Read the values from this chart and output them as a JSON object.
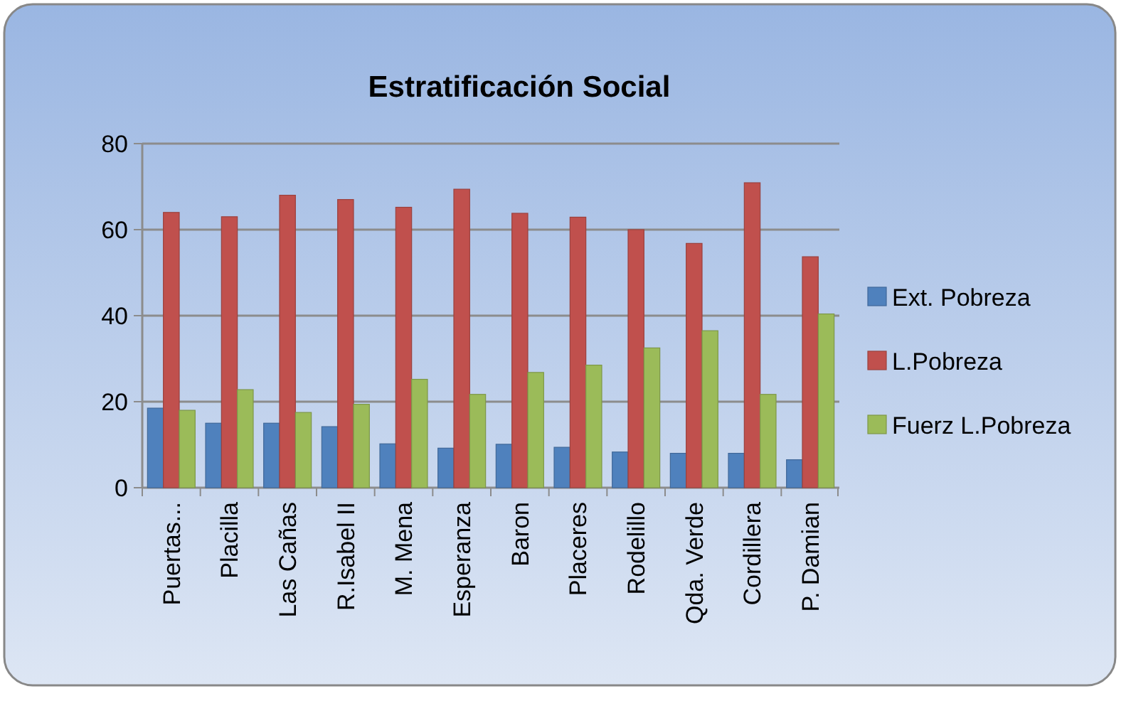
{
  "chart_data": {
    "type": "bar",
    "title": "Estratificación Social",
    "categories": [
      "Puertas...",
      "Placilla",
      "Las Cañas",
      "R.Isabel II",
      "M. Mena",
      "Esperanza",
      "Baron",
      "Placeres",
      "Rodelillo",
      "Qda. Verde",
      "Cordillera",
      "P. Damian"
    ],
    "series": [
      {
        "name": "Ext. Pobreza",
        "color": "#4f81bd",
        "values": [
          18.5,
          15,
          15,
          14.2,
          10.2,
          9.2,
          10.1,
          9.4,
          8.3,
          8,
          8,
          6.5
        ]
      },
      {
        "name": "L.Pobreza",
        "color": "#c0504d",
        "values": [
          64,
          63,
          68,
          67,
          65.2,
          69.4,
          63.8,
          62.9,
          60,
          56.8,
          70.9,
          53.7
        ]
      },
      {
        "name": "Fuerz L.Pobreza",
        "color": "#9bbb59",
        "values": [
          18,
          22.8,
          17.5,
          19.4,
          25.2,
          21.7,
          26.8,
          28.5,
          32.5,
          36.5,
          21.7,
          40.4
        ]
      }
    ],
    "ylim": [
      0,
      80
    ],
    "yticks": [
      0,
      20,
      40,
      60,
      80
    ],
    "grid": "y",
    "legend": "right"
  }
}
